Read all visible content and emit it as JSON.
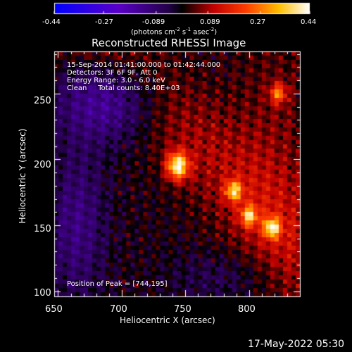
{
  "colorbar": {
    "ticks": [
      "-0.44",
      "-0.27",
      "-0.089",
      "0.089",
      "0.27",
      "0.44"
    ],
    "unit_label": "(photons cm",
    "unit_sup1": "-2",
    "unit_mid": " s",
    "unit_sup2": "-1",
    "unit_end": " asec",
    "unit_sup3": "-2",
    "unit_close": ")",
    "range": [
      -0.44,
      0.44
    ]
  },
  "chart_data": {
    "type": "heatmap",
    "title": "Reconstructed RHESSI Image",
    "xlabel": "Heliocentric X (arcsec)",
    "ylabel": "Heliocentric Y (arcsec)",
    "x_ticks": [
      650,
      700,
      750,
      800
    ],
    "y_ticks": [
      100,
      150,
      200,
      250
    ],
    "xlim": [
      647,
      840
    ],
    "ylim": [
      96,
      282
    ],
    "annotations": [
      "15-Sep-2014 01:41:00.000 to 01:42:44.000",
      "Detectors: 3F 6F 9F, Att 0",
      "Energy Range: 3.0 - 6.0 keV",
      "Clean     Total counts: 8.40E+03",
      "Position of Peak = [744,195]"
    ],
    "peaks": [
      {
        "x": 744,
        "y": 195,
        "value": 0.44
      },
      {
        "x": 788,
        "y": 176,
        "value": 0.34
      },
      {
        "x": 800,
        "y": 157,
        "value": 0.33
      },
      {
        "x": 818,
        "y": 148,
        "value": 0.38
      },
      {
        "x": 823,
        "y": 250,
        "value": 0.28
      }
    ]
  },
  "footer": {
    "timestamp": "17-May-2022 05:30"
  }
}
